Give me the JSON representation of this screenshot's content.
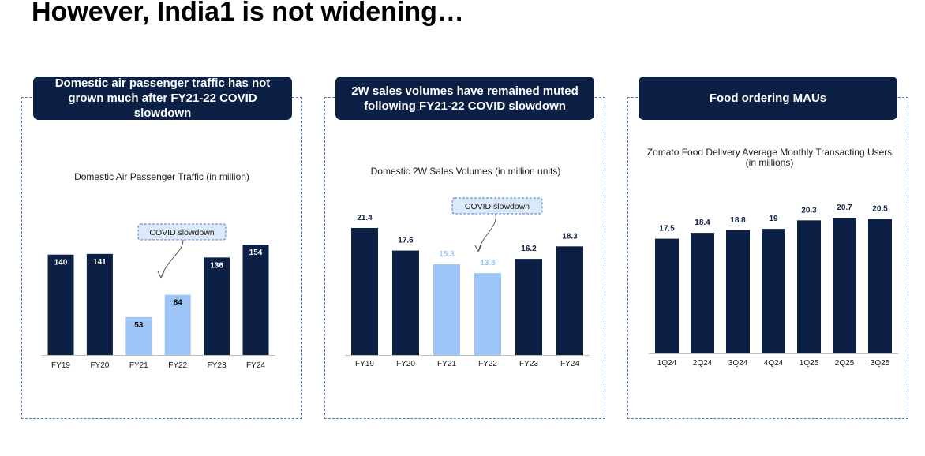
{
  "page": {
    "title": "However, India1 is not widening…"
  },
  "colors": {
    "dark": "#0c1f45",
    "light": "#9ec5f8",
    "callout_bg": "#dce9fb",
    "border": "#4a7fd0"
  },
  "panels": [
    {
      "header": "Domestic air passenger traffic has not grown much after FY21-22 COVID slowdown"
    },
    {
      "header": "2W sales volumes have remained muted following FY21-22 COVID slowdown"
    },
    {
      "header": "Food ordering MAUs"
    }
  ],
  "chart_data": [
    {
      "type": "bar",
      "title": "Domestic Air Passenger Traffic (in million)",
      "categories": [
        "FY19",
        "FY20",
        "FY21",
        "FY22",
        "FY23",
        "FY24"
      ],
      "values": [
        140,
        141,
        53,
        84,
        136,
        154
      ],
      "labels": [
        "140",
        "141",
        "53",
        "84",
        "136",
        "154"
      ],
      "highlighted": [
        "FY21",
        "FY22"
      ],
      "annotation": "COVID slowdown",
      "label_position": "inside",
      "ylim": [
        0,
        154
      ]
    },
    {
      "type": "bar",
      "title": "Domestic 2W Sales Volumes (in million units)",
      "categories": [
        "FY19",
        "FY20",
        "FY21",
        "FY22",
        "FY23",
        "FY24"
      ],
      "values": [
        21.4,
        17.6,
        15.3,
        13.8,
        16.2,
        18.3
      ],
      "labels": [
        "21.4",
        "17.6",
        "15.3",
        "13.8",
        "16.2",
        "18.3"
      ],
      "highlighted": [
        "FY21",
        "FY22"
      ],
      "annotation": "COVID slowdown",
      "label_position": "above",
      "ylim": [
        0,
        21.4
      ]
    },
    {
      "type": "bar",
      "title": "Zomato Food Delivery Average Monthly Transacting Users (in millions)",
      "title_lines": [
        "Zomato Food Delivery Average Monthly Transacting Users",
        "(in millions)"
      ],
      "categories": [
        "1Q24",
        "2Q24",
        "3Q24",
        "4Q24",
        "1Q25",
        "2Q25",
        "3Q25"
      ],
      "values": [
        17.5,
        18.4,
        18.8,
        19,
        20.3,
        20.7,
        20.5
      ],
      "labels": [
        "17.5",
        "18.4",
        "18.8",
        "19",
        "20.3",
        "20.7",
        "20.5"
      ],
      "highlighted": [],
      "label_position": "above",
      "ylim": [
        0,
        20.7
      ]
    }
  ]
}
